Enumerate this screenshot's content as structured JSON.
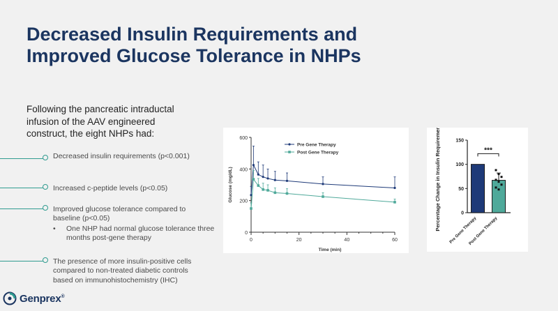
{
  "slide": {
    "title_line1": "Decreased Insulin Requirements and",
    "title_line2": "Improved Glucose Tolerance in NHPs",
    "intro": "Following the pancreatic intraductal infusion of the AAV engineered construct, the eight NHPs had:",
    "bullets": [
      {
        "text": "Decreased insulin requirements (p<0.001)"
      },
      {
        "text": "Increased c-peptide levels (p<0.05)"
      },
      {
        "text": "Improved glucose tolerance compared to baseline (p<0.05)"
      },
      {
        "text": "The presence of more insulin-positive cells compared to non-treated diabetic controls based on immunohistochemistry (IHC)"
      }
    ],
    "sub_bullet": {
      "marker": "•",
      "text": "One NHP had normal glucose tolerance three months post-gene therapy"
    }
  },
  "logo": {
    "text": "Genprex",
    "tm": "®"
  },
  "colors": {
    "title": "#1b3560",
    "accent": "#2f9c90",
    "pre": "#1e3a78",
    "post": "#4fa99a"
  },
  "chart_data": [
    {
      "type": "line",
      "xlabel": "Time (min)",
      "ylabel": "Glucose (mg/dL)",
      "xlim": [
        0,
        60
      ],
      "ylim": [
        0,
        600
      ],
      "xticks": [
        "0",
        "20",
        "40",
        "60"
      ],
      "yticks": [
        "0",
        "200",
        "400",
        "600"
      ],
      "legend_position": "top",
      "series": [
        {
          "name": "Pre Gene Therapy",
          "x": [
            0,
            1,
            3,
            5,
            7,
            10,
            15,
            30,
            60
          ],
          "y": [
            235,
            425,
            365,
            350,
            340,
            330,
            325,
            305,
            280
          ],
          "err": [
            55,
            120,
            80,
            75,
            60,
            55,
            50,
            45,
            70
          ]
        },
        {
          "name": "Post Gene Therapy",
          "x": [
            0,
            1,
            3,
            5,
            7,
            10,
            15,
            30,
            60
          ],
          "y": [
            150,
            335,
            295,
            270,
            265,
            250,
            245,
            225,
            190
          ],
          "err": [
            35,
            55,
            45,
            40,
            35,
            30,
            30,
            25,
            20
          ]
        }
      ]
    },
    {
      "type": "bar",
      "ylabel": "Percentage Change in Insulin Requirements",
      "ylim": [
        0,
        150
      ],
      "yticks": [
        "0",
        "50",
        "100",
        "150"
      ],
      "categories": [
        "Pre Gene Therapy",
        "Post Gene Therapy"
      ],
      "values": [
        100,
        67
      ],
      "err": [
        0,
        15
      ],
      "points": [
        [],
        [
          88,
          80,
          74,
          68,
          64,
          58,
          52,
          48
        ]
      ],
      "annotation": "***"
    }
  ]
}
